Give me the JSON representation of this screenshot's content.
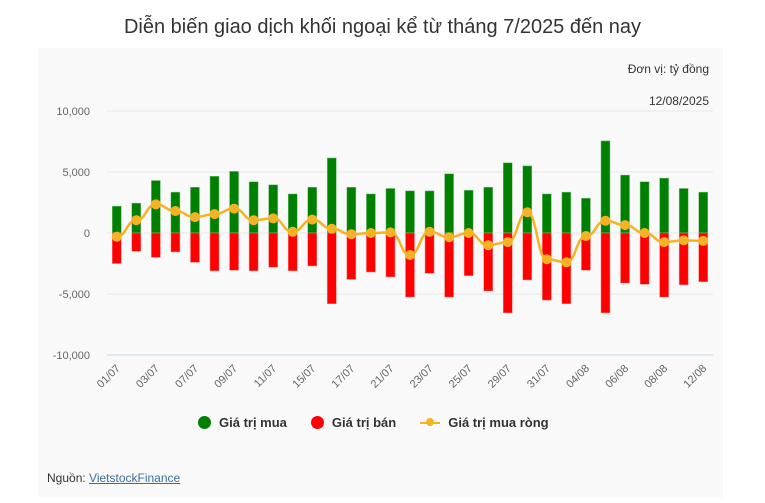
{
  "header": {
    "title": "Diễn biến giao dịch khối ngoại kể từ tháng 7/2025 đến nay"
  },
  "panel": {
    "unit": "Đơn vị: tỷ đồng",
    "date": "12/08/2025"
  },
  "legend": {
    "buy": "Giá trị mua",
    "sell": "Giá trị bán",
    "net": "Giá trị mua ròng"
  },
  "footer": {
    "source_label": "Nguồn: ",
    "source_link": "VietstockFinance"
  },
  "colors": {
    "buy": "#008000",
    "sell": "#ff0000",
    "net": "#f5b324",
    "grid": "#e6e6e6",
    "axis": "#ccd6eb",
    "tick": "#666666"
  },
  "chart_data": {
    "type": "bar",
    "title": "Diễn biến giao dịch khối ngoại kể từ tháng 7/2025 đến nay",
    "subtitle": "Đơn vị: tỷ đồng",
    "xlabel": "",
    "ylabel": "",
    "ylim": [
      -10000,
      10000
    ],
    "yticks": [
      10000,
      5000,
      0,
      -5000,
      -10000
    ],
    "ytick_labels": [
      "10,000",
      "5,000",
      "0",
      "-5,000",
      "-10,000"
    ],
    "grid": true,
    "legend_position": "bottom",
    "categories": [
      "01/07",
      "02/07",
      "03/07",
      "04/07",
      "07/07",
      "08/07",
      "09/07",
      "10/07",
      "11/07",
      "14/07",
      "15/07",
      "16/07",
      "17/07",
      "18/07",
      "21/07",
      "22/07",
      "23/07",
      "24/07",
      "25/07",
      "28/07",
      "29/07",
      "30/07",
      "31/07",
      "01/08",
      "04/08",
      "05/08",
      "06/08",
      "07/08",
      "08/08",
      "11/08",
      "12/08"
    ],
    "visible_tick_labels": [
      "01/07",
      "03/07",
      "07/07",
      "09/07",
      "11/07",
      "15/07",
      "17/07",
      "21/07",
      "23/07",
      "25/07",
      "29/07",
      "31/07",
      "04/08",
      "06/08",
      "08/08",
      "12/08"
    ],
    "series": [
      {
        "name": "Giá trị mua",
        "type": "bar",
        "color": "#008000",
        "values": [
          2200,
          2450,
          4300,
          3350,
          3750,
          4650,
          5050,
          4200,
          3950,
          3200,
          3750,
          6150,
          3750,
          3200,
          3650,
          3450,
          3450,
          4850,
          3500,
          3750,
          5750,
          5500,
          3200,
          3350,
          2850,
          7550,
          4750,
          4200,
          4500,
          3650,
          3350
        ]
      },
      {
        "name": "Giá trị bán",
        "type": "bar",
        "color": "#ff0000",
        "values": [
          -2500,
          -1500,
          -2000,
          -1550,
          -2400,
          -3100,
          -3050,
          -3100,
          -2800,
          -3100,
          -2700,
          -5800,
          -3800,
          -3200,
          -3600,
          -5250,
          -3300,
          -5250,
          -3500,
          -4750,
          -6550,
          -3850,
          -5500,
          -5800,
          -3050,
          -6550,
          -4100,
          -4200,
          -5250,
          -4250,
          -4000
        ]
      },
      {
        "name": "Giá trị mua ròng",
        "type": "line",
        "color": "#f5b324",
        "values": [
          -300,
          1050,
          2350,
          1800,
          1300,
          1550,
          2000,
          1050,
          1200,
          100,
          1100,
          350,
          -100,
          0,
          50,
          -1800,
          100,
          -350,
          0,
          -1000,
          -750,
          1700,
          -2150,
          -2400,
          -250,
          1000,
          650,
          0,
          -750,
          -600,
          -650
        ]
      }
    ]
  }
}
